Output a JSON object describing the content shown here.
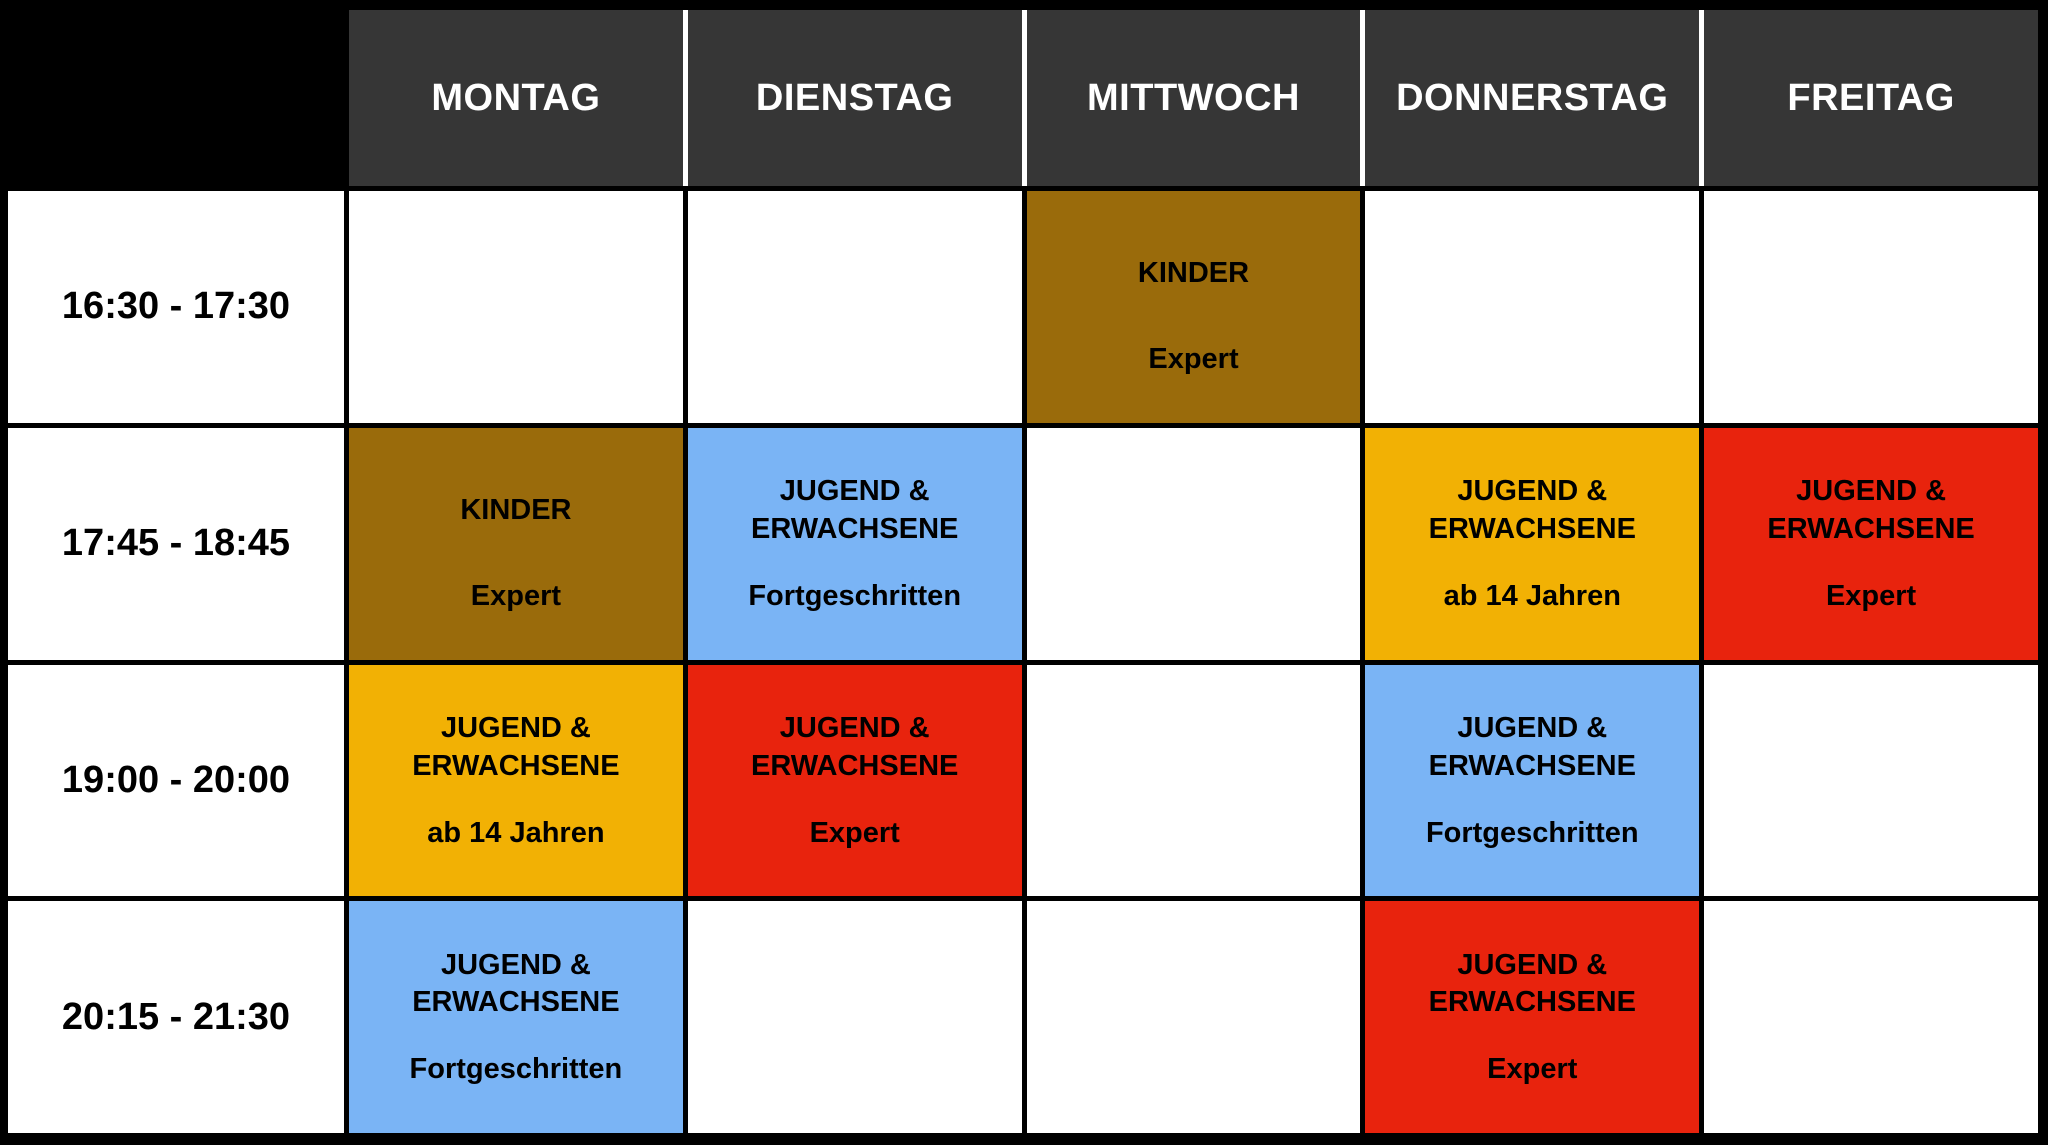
{
  "header": {
    "days": [
      "MONTAG",
      "DIENSTAG",
      "MITTWOCH",
      "DONNERSTAG",
      "FREITAG"
    ]
  },
  "colors": {
    "header_bg": "#363636",
    "header_text": "#FFFFFF",
    "grid_line": "#000000",
    "empty_cell": "#FFFFFF",
    "brown": "#9A6B0B",
    "yellow": "#F2B104",
    "blue": "#7AB4F5",
    "red": "#E8230D"
  },
  "rows": [
    {
      "time": "16:30 - 17:30",
      "cells": [
        {},
        {},
        {
          "title": "KINDER",
          "subtitle": "Expert",
          "color": "brown"
        },
        {},
        {}
      ]
    },
    {
      "time": "17:45 - 18:45",
      "cells": [
        {
          "title": "KINDER",
          "subtitle": "Expert",
          "color": "brown"
        },
        {
          "title": "JUGEND & ERWACHSENE",
          "subtitle": "Fortgeschritten",
          "color": "blue"
        },
        {},
        {
          "title": "JUGEND & ERWACHSENE",
          "subtitle": "ab 14 Jahren",
          "color": "yellow"
        },
        {
          "title": "JUGEND & ERWACHSENE",
          "subtitle": "Expert",
          "color": "red"
        }
      ]
    },
    {
      "time": "19:00 - 20:00",
      "cells": [
        {
          "title": "JUGEND & ERWACHSENE",
          "subtitle": "ab 14 Jahren",
          "color": "yellow"
        },
        {
          "title": "JUGEND & ERWACHSENE",
          "subtitle": "Expert",
          "color": "red"
        },
        {},
        {
          "title": "JUGEND & ERWACHSENE",
          "subtitle": "Fortgeschritten",
          "color": "blue"
        },
        {}
      ]
    },
    {
      "time": "20:15 - 21:30",
      "cells": [
        {
          "title": "JUGEND & ERWACHSENE",
          "subtitle": "Fortgeschritten",
          "color": "blue"
        },
        {},
        {},
        {
          "title": "JUGEND & ERWACHSENE",
          "subtitle": "Expert",
          "color": "red"
        },
        {}
      ]
    }
  ]
}
